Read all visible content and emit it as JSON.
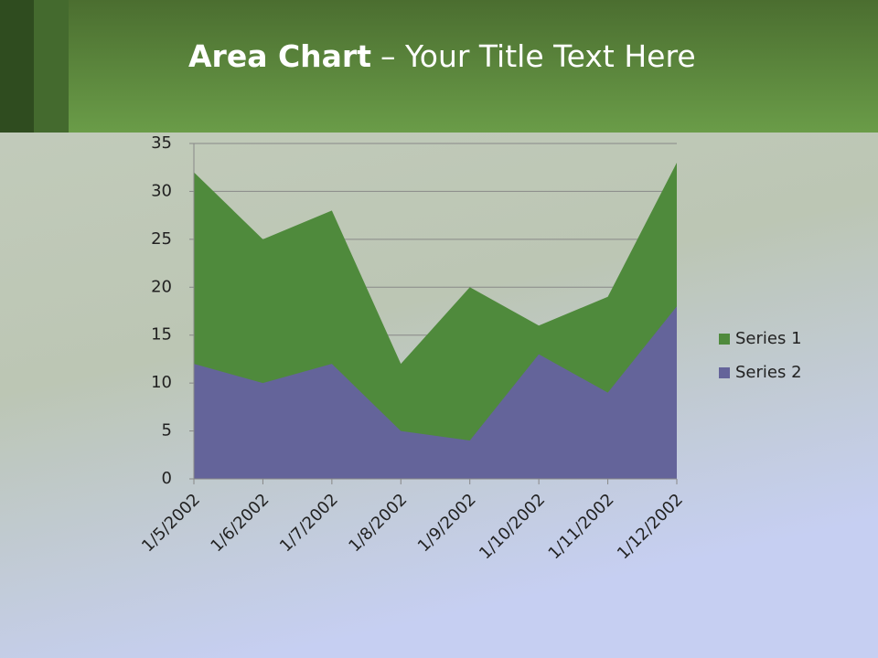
{
  "chart_data": {
    "type": "area",
    "title": {
      "bold": "Area Chart",
      "rest": "– Your Title Text Here"
    },
    "categories": [
      "1/5/2002",
      "1/6/2002",
      "1/7/2002",
      "1/8/2002",
      "1/9/2002",
      "1/10/2002",
      "1/11/2002",
      "1/12/2002"
    ],
    "series": [
      {
        "name": "Series 1",
        "color": "#4f8a3c",
        "values": [
          32,
          25,
          28,
          12,
          20,
          16,
          19,
          33
        ]
      },
      {
        "name": "Series 2",
        "color": "#64649a",
        "values": [
          12,
          10,
          12,
          5,
          4,
          13,
          9,
          18
        ]
      }
    ],
    "ylim": [
      0,
      35
    ],
    "yticks": [
      0,
      5,
      10,
      15,
      20,
      25,
      30,
      35
    ],
    "grid": true,
    "legend": "right"
  }
}
